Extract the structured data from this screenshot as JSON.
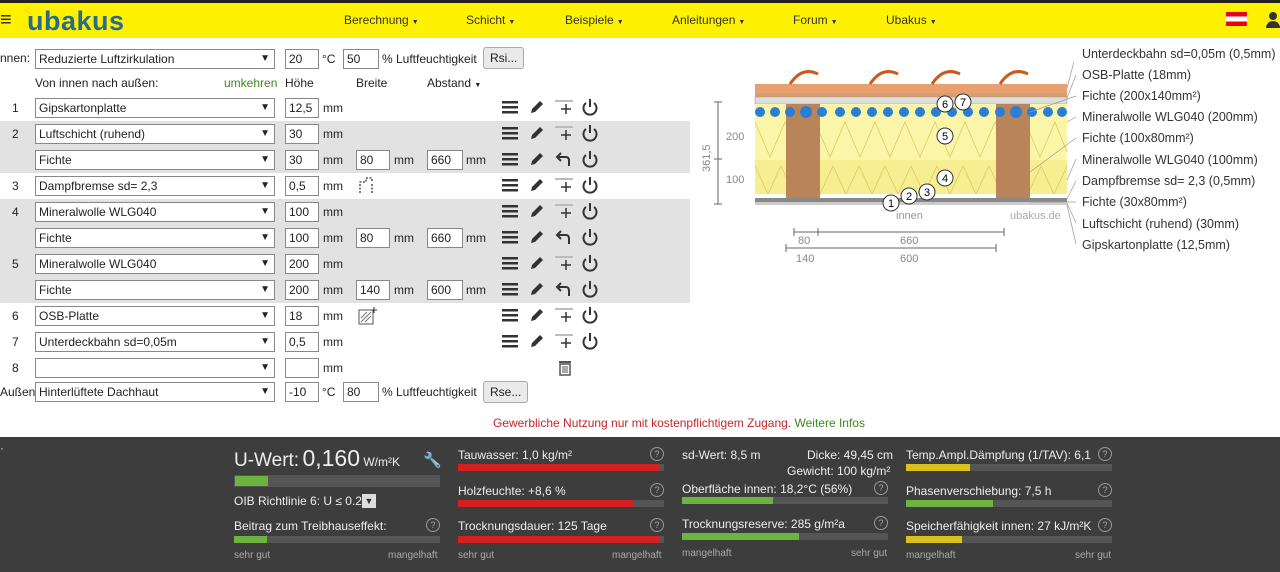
{
  "header": {
    "logo": "ubakus",
    "menu": [
      "Berechnung",
      "Schicht",
      "Beispiele",
      "Anleitungen",
      "Forum",
      "Ubakus"
    ]
  },
  "inside": {
    "label": "nnen:",
    "climate": "Reduzierte Luftzirkulation",
    "temp": "20",
    "temp_unit": "°C",
    "humidity": "50",
    "humidity_unit": "% Luftfeuchtigkeit",
    "rsi_button": "Rsi..."
  },
  "table_header": {
    "direction": "Von innen nach außen:",
    "reverse": "umkehren",
    "height": "Höhe",
    "width": "Breite",
    "distance": "Abstand"
  },
  "layers": [
    {
      "idx": "1",
      "material": "Gipskartonplatte",
      "thickness": "12,5",
      "unit": "mm"
    },
    {
      "idx": "2",
      "material": "Luftschicht (ruhend)",
      "thickness": "30",
      "unit": "mm"
    },
    {
      "idx": "",
      "material": "Fichte",
      "thickness": "30",
      "unit": "mm",
      "width": "80",
      "distance": "660"
    },
    {
      "idx": "3",
      "material": "Dampfbremse sd= 2,3",
      "thickness": "0,5",
      "unit": "mm"
    },
    {
      "idx": "4",
      "material": "Mineralwolle WLG040",
      "thickness": "100",
      "unit": "mm"
    },
    {
      "idx": "",
      "material": "Fichte",
      "thickness": "100",
      "unit": "mm",
      "width": "80",
      "distance": "660"
    },
    {
      "idx": "5",
      "material": "Mineralwolle WLG040",
      "thickness": "200",
      "unit": "mm"
    },
    {
      "idx": "",
      "material": "Fichte",
      "thickness": "200",
      "unit": "mm",
      "width": "140",
      "distance": "600"
    },
    {
      "idx": "6",
      "material": "OSB-Platte",
      "thickness": "18",
      "unit": "mm"
    },
    {
      "idx": "7",
      "material": "Unterdeckbahn sd=0,05m",
      "thickness": "0,5",
      "unit": "mm"
    },
    {
      "idx": "8",
      "material": "",
      "thickness": "",
      "unit": "mm"
    }
  ],
  "outside": {
    "label": "Außen:",
    "climate": "Hinterlüftete Dachhaut",
    "temp": "-10",
    "temp_unit": "°C",
    "humidity": "80",
    "humidity_unit": "% Luftfeuchtigkeit",
    "rse_button": "Rse..."
  },
  "notice": {
    "text": "Gewerbliche Nutzung nur mit kostenpflichtigem Zugang.",
    "link": "Weitere Infos"
  },
  "diagram": {
    "dims": [
      "200",
      "100",
      "361,5"
    ],
    "bottom_dims": [
      "80",
      "660",
      "140",
      "600"
    ],
    "innen": "innen",
    "watermark": "ubakus.de",
    "circles": [
      "1",
      "2",
      "3",
      "4",
      "5",
      "6",
      "7"
    ],
    "legend": [
      "Unterdeckbahn sd=0,05m (0,5mm)",
      "OSB-Platte (18mm)",
      "Fichte (200x140mm²)",
      "Mineralwolle WLG040 (200mm)",
      "Fichte (100x80mm²)",
      "Mineralwolle WLG040 (100mm)",
      "Dampfbremse sd= 2,3 (0,5mm)",
      "Fichte (30x80mm²)",
      "Luftschicht (ruhend) (30mm)",
      "Gipskartonplatte (12,5mm)"
    ]
  },
  "results": {
    "uwert_label": "U-Wert:",
    "uwert_value": "0,160",
    "uwert_unit": "W/m²K",
    "uwert_level": 0.16,
    "oib": "OIB Richtlinie 6: U ≤ 0.2*",
    "treibhaus": "Beitrag zum Treibhauseffekt:",
    "treibhaus_level": 0.16,
    "col1_left": "sehr gut",
    "col1_right": "mangelhaft",
    "tauwasser": "Tauwasser: 1,0 kg/m²",
    "tauwasser_level": 0.98,
    "holzfeuchte": "Holzfeuchte: +8,6 %",
    "holzfeuchte_level": 0.85,
    "trocknungsdauer": "Trocknungsdauer: 125 Tage",
    "trocknungsdauer_level": 0.98,
    "col2_left": "sehr gut",
    "col2_right": "mangelhaft",
    "sd": "sd-Wert: 8,5 m",
    "dicke": "Dicke: 49,45 cm",
    "gewicht": "Gewicht: 100 kg/m²",
    "oberflaeche": "Oberfläche innen: 18,2°C (56%)",
    "oberflaeche_level": 0.44,
    "trocknungsreserve": "Trocknungsreserve: 285 g/m²a",
    "trocknungsreserve_level": 0.57,
    "col3_left": "mangelhaft",
    "col3_right": "sehr gut",
    "daempfung": "Temp.Ampl.Dämpfung (1/TAV): 6,1",
    "daempfung_level": 0.31,
    "phase": "Phasenverschiebung: 7,5 h",
    "phase_level": 0.42,
    "speicher": "Speicherfähigkeit innen: 27 kJ/m²K",
    "speicher_level": 0.27,
    "col4_left": "mangelhaft",
    "col4_right": "sehr gut",
    "help": "?"
  }
}
